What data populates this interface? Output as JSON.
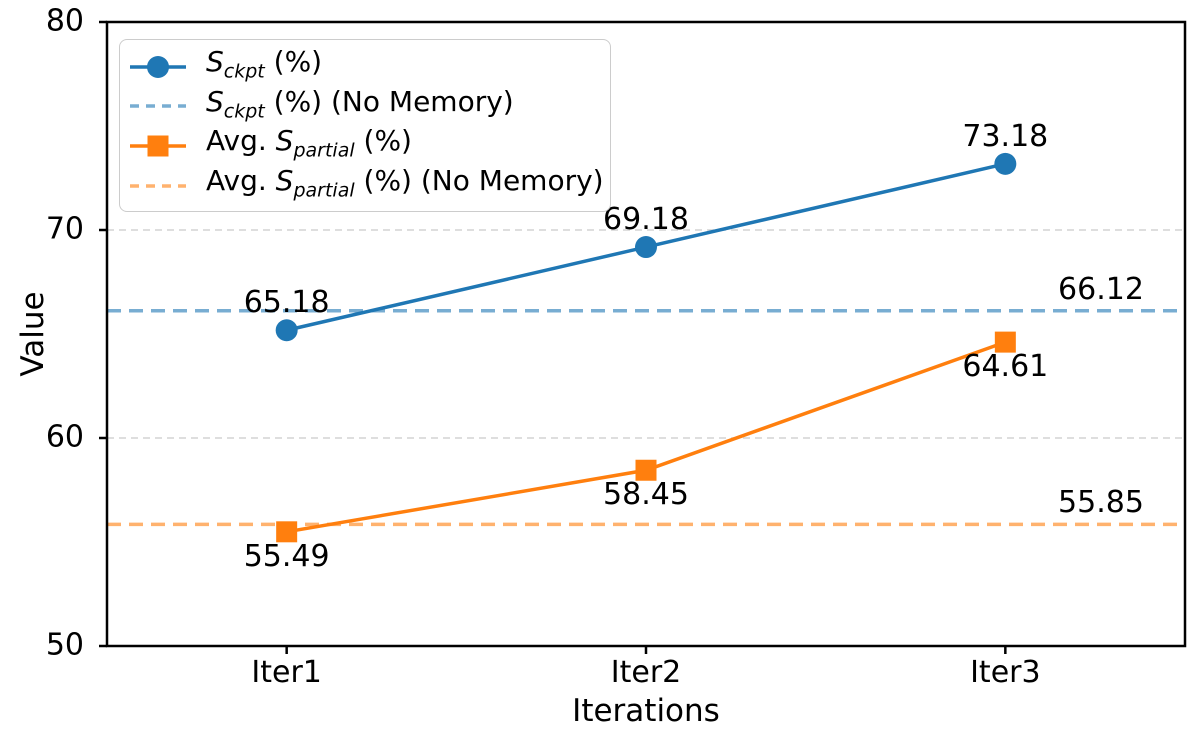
{
  "chart_data": {
    "type": "line",
    "title": "",
    "xlabel": "Iterations",
    "ylabel": "Value",
    "categories": [
      "Iter1",
      "Iter2",
      "Iter3"
    ],
    "ylim": [
      50,
      80
    ],
    "yticks": [
      50,
      60,
      70,
      80
    ],
    "grid_yticks": [
      60,
      70
    ],
    "grid": "horizontal dashed",
    "legend_position": "upper-left",
    "series": [
      {
        "name": "S_ckpt (%)",
        "values": [
          65.18,
          69.18,
          73.18
        ],
        "labels": [
          "65.18",
          "69.18",
          "73.18"
        ],
        "color": "#1f77b4",
        "marker": "circle",
        "line_style": "solid",
        "label_side": "above"
      },
      {
        "name": "Avg. S_partial (%)",
        "values": [
          55.49,
          58.45,
          64.61
        ],
        "labels": [
          "55.49",
          "58.45",
          "64.61"
        ],
        "color": "#ff7f0e",
        "marker": "square",
        "line_style": "solid",
        "label_side": "below"
      }
    ],
    "reference_lines": [
      {
        "name": "S_ckpt (%) (No Memory)",
        "value": 66.12,
        "label": "66.12",
        "color": "#78add2",
        "line_style": "dashed"
      },
      {
        "name": "Avg. S_partial (%) (No Memory)",
        "value": 55.85,
        "label": "55.85",
        "color": "#ffb26e",
        "line_style": "dashed"
      }
    ],
    "colors": {
      "grid": "#d3d3d3",
      "spine": "#000000",
      "text": "#000000"
    }
  },
  "legend": {
    "items": [
      {
        "pre": "",
        "sym": "S",
        "sub": "ckpt",
        "post": " (%)",
        "color": "#1f77b4",
        "kind": "solid-circle"
      },
      {
        "pre": "",
        "sym": "S",
        "sub": "ckpt",
        "post": " (%) (No Memory)",
        "color": "#78add2",
        "kind": "dashed"
      },
      {
        "pre": "Avg. ",
        "sym": "S",
        "sub": "partial",
        "post": " (%)",
        "color": "#ff7f0e",
        "kind": "solid-square"
      },
      {
        "pre": "Avg. ",
        "sym": "S",
        "sub": "partial",
        "post": " (%) (No Memory)",
        "color": "#ffb26e",
        "kind": "dashed"
      }
    ]
  }
}
